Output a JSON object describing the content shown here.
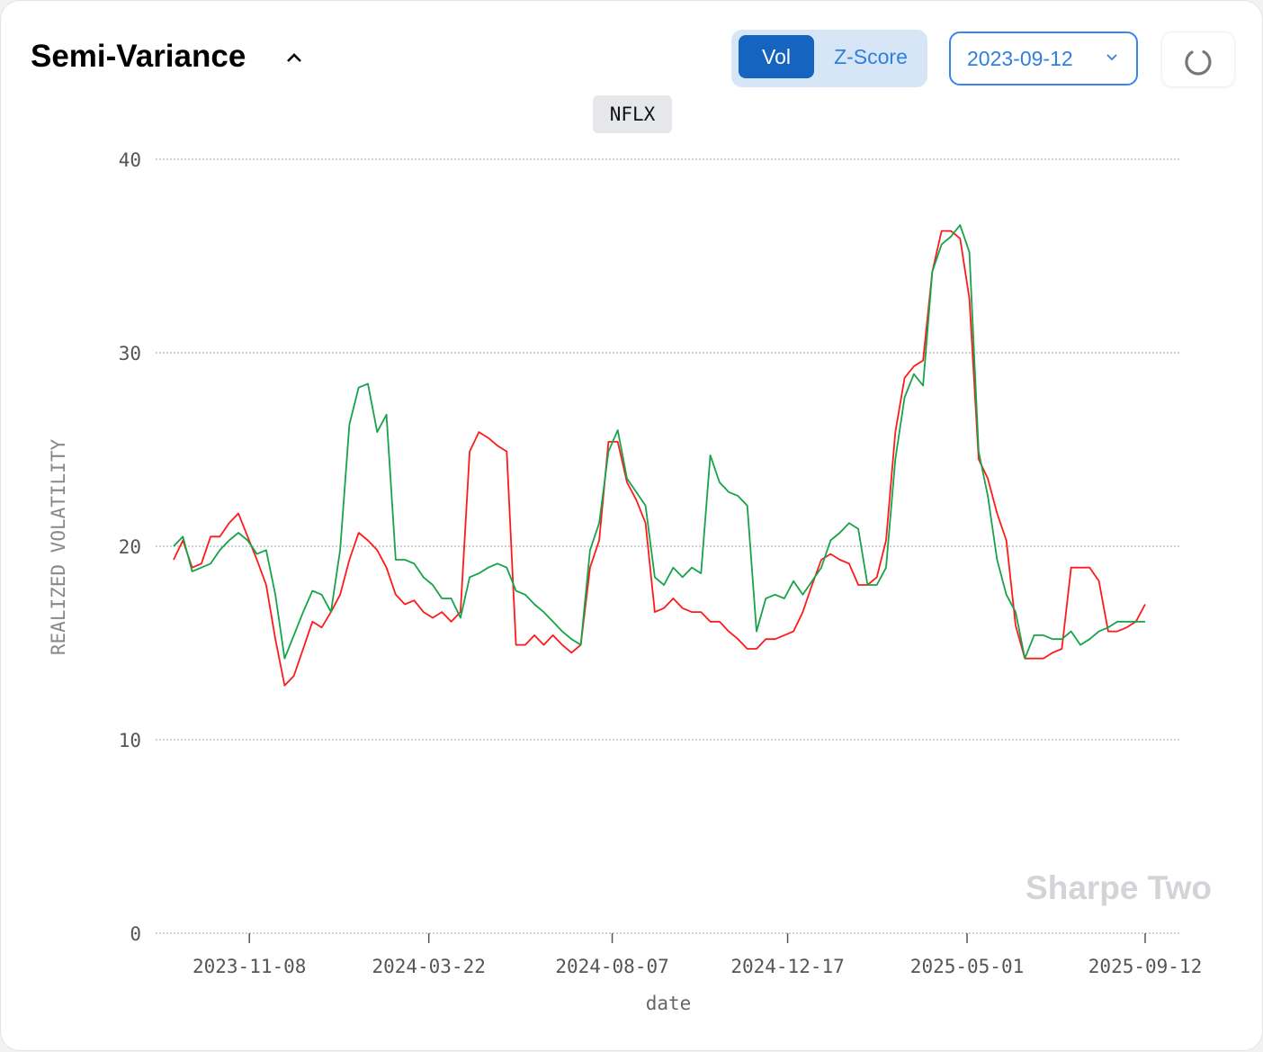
{
  "header": {
    "title": "Semi-Variance",
    "toggle_vol": "Vol",
    "toggle_zscore": "Z-Score",
    "date_value": "2023-09-12",
    "ticker": "NFLX"
  },
  "watermark": "Sharpe Two",
  "colors": {
    "red_series": "#ff1a1a",
    "green_series": "#16a34a",
    "accent": "#1565c0"
  },
  "chart_data": {
    "type": "line",
    "title": "NFLX",
    "xlabel": "date",
    "ylabel": "REALIZED VOLATILITY",
    "ylim": [
      0,
      40
    ],
    "yticks": [
      "0",
      "10",
      "20",
      "30",
      "40"
    ],
    "xlim": [
      "2023-09-12",
      "2025-09-12"
    ],
    "xticks": [
      "2023-11-08",
      "2024-03-22",
      "2024-08-07",
      "2024-12-17",
      "2025-05-01",
      "2025-09-12"
    ],
    "sampling": "weekly, evenly spaced from 2023-09-12 to 2025-09-12",
    "grid": "horizontal dotted",
    "series": [
      {
        "color": "#ff1a1a",
        "values": [
          19.3,
          20.3,
          18.9,
          19.1,
          20.5,
          20.5,
          21.2,
          21.7,
          20.5,
          19.3,
          18.0,
          15.2,
          12.8,
          13.3,
          14.7,
          16.1,
          15.8,
          16.6,
          17.5,
          19.3,
          20.7,
          20.3,
          19.8,
          18.9,
          17.5,
          17.0,
          17.2,
          16.6,
          16.3,
          16.6,
          16.1,
          16.6,
          24.9,
          25.9,
          25.6,
          25.2,
          24.9,
          14.9,
          14.9,
          15.4,
          14.9,
          15.4,
          14.9,
          14.5,
          14.9,
          18.9,
          20.3,
          25.4,
          25.4,
          23.3,
          22.4,
          21.2,
          16.6,
          16.8,
          17.3,
          16.8,
          16.6,
          16.6,
          16.1,
          16.1,
          15.6,
          15.2,
          14.7,
          14.7,
          15.2,
          15.2,
          15.4,
          15.6,
          16.6,
          18.0,
          19.3,
          19.6,
          19.3,
          19.1,
          18.0,
          18.0,
          18.4,
          20.3,
          25.9,
          28.7,
          29.3,
          29.6,
          34.2,
          36.3,
          36.3,
          35.9,
          32.8,
          24.5,
          23.5,
          21.7,
          20.3,
          15.9,
          14.2,
          14.2,
          14.2,
          14.5,
          14.7,
          18.9,
          18.9,
          18.9,
          18.2,
          15.6,
          15.6,
          15.8,
          16.1,
          17.0
        ]
      },
      {
        "color": "#16a34a",
        "values": [
          20.0,
          20.5,
          18.7,
          18.9,
          19.1,
          19.8,
          20.3,
          20.7,
          20.3,
          19.6,
          19.8,
          17.5,
          14.2,
          15.4,
          16.6,
          17.7,
          17.5,
          16.6,
          19.8,
          26.3,
          28.2,
          28.4,
          25.9,
          26.8,
          19.3,
          19.3,
          19.1,
          18.4,
          18.0,
          17.3,
          17.3,
          16.3,
          18.4,
          18.6,
          18.9,
          19.1,
          18.9,
          17.7,
          17.5,
          17.0,
          16.6,
          16.1,
          15.6,
          15.2,
          14.9,
          19.8,
          21.2,
          24.9,
          26.0,
          23.5,
          22.8,
          22.1,
          18.4,
          18.0,
          18.9,
          18.4,
          18.9,
          18.6,
          24.7,
          23.3,
          22.8,
          22.6,
          22.1,
          15.6,
          17.3,
          17.5,
          17.3,
          18.2,
          17.5,
          18.2,
          18.9,
          20.3,
          20.7,
          21.2,
          20.9,
          18.0,
          18.0,
          18.9,
          24.5,
          27.7,
          28.9,
          28.3,
          34.2,
          35.6,
          36.0,
          36.6,
          35.2,
          24.9,
          22.6,
          19.3,
          17.5,
          16.6,
          14.2,
          15.4,
          15.4,
          15.2,
          15.2,
          15.6,
          14.9,
          15.2,
          15.6,
          15.8,
          16.1,
          16.1,
          16.1,
          16.1
        ]
      }
    ]
  }
}
